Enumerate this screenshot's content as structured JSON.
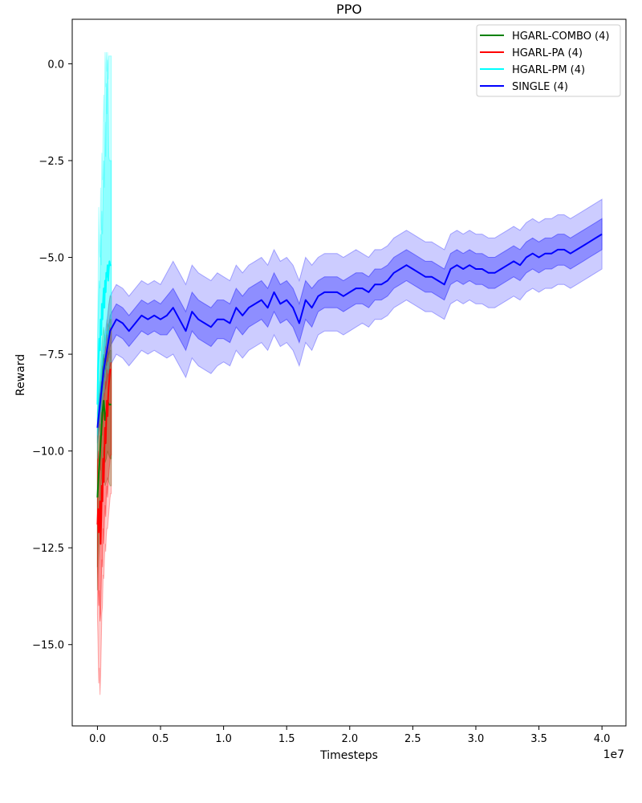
{
  "chart_data": {
    "type": "line",
    "title": "PPO",
    "xlabel": "Timesteps",
    "ylabel": "Reward",
    "x_offset_label": "1e7",
    "xlim": [
      -0.2,
      4.19
    ],
    "ylim": [
      -17.1,
      1.15
    ],
    "x_ticks": [
      0.0,
      0.5,
      1.0,
      1.5,
      2.0,
      2.5,
      3.0,
      3.5,
      4.0
    ],
    "x_tick_labels": [
      "0.0",
      "0.5",
      "1.0",
      "1.5",
      "2.0",
      "2.5",
      "3.0",
      "3.5",
      "4.0"
    ],
    "y_ticks": [
      0.0,
      -2.5,
      -5.0,
      -7.5,
      -10.0,
      -12.5,
      -15.0
    ],
    "y_tick_labels": [
      "0.0",
      "−2.5",
      "−5.0",
      "−7.5",
      "−10.0",
      "−12.5",
      "−15.0"
    ],
    "grid": false,
    "legend_position": "top-right",
    "series": [
      {
        "name": "HGARL-COMBO (4)",
        "color": "#008000",
        "x": [
          0.0,
          0.01,
          0.02,
          0.03,
          0.04,
          0.05,
          0.06,
          0.07,
          0.08,
          0.09,
          0.1,
          0.11
        ],
        "values": [
          -11.2,
          -10.6,
          -10.1,
          -9.5,
          -9.0,
          -8.7,
          -9.2,
          -9.0,
          -8.7,
          -8.8,
          -8.8,
          -8.8
        ],
        "band_lo": [
          -13.0,
          -12.0,
          -11.5,
          -10.8,
          -10.3,
          -9.9,
          -10.3,
          -10.2,
          -10.0,
          -10.1,
          -10.2,
          -10.2
        ],
        "band_hi": [
          -9.6,
          -9.2,
          -8.6,
          -8.2,
          -7.8,
          -7.5,
          -7.9,
          -7.7,
          -7.4,
          -7.5,
          -7.4,
          -7.4
        ],
        "band_outer_lo": [
          -13.6,
          -12.8,
          -12.2,
          -11.6,
          -11.0,
          -10.6,
          -10.9,
          -10.8,
          -10.7,
          -10.8,
          -10.9,
          -10.9
        ],
        "band_outer_hi": [
          -9.0,
          -8.6,
          -8.0,
          -7.5,
          -7.1,
          -6.8,
          -7.2,
          -7.0,
          -6.7,
          -6.8,
          -6.6,
          -6.6
        ]
      },
      {
        "name": "HGARL-PA (4)",
        "color": "#ff0000",
        "x": [
          0.0,
          0.005,
          0.01,
          0.015,
          0.02,
          0.025,
          0.03,
          0.035,
          0.04,
          0.045,
          0.05,
          0.055,
          0.06,
          0.065,
          0.07,
          0.075,
          0.08,
          0.085,
          0.09,
          0.095,
          0.1,
          0.105,
          0.11
        ],
        "values": [
          -11.9,
          -11.5,
          -12.1,
          -11.8,
          -11.3,
          -12.4,
          -11.7,
          -10.9,
          -11.3,
          -10.2,
          -10.8,
          -10.0,
          -9.4,
          -9.8,
          -9.2,
          -8.7,
          -9.1,
          -8.6,
          -8.3,
          -8.1,
          -7.9,
          -7.9,
          -7.9
        ],
        "band_lo": [
          -13.0,
          -13.4,
          -14.0,
          -13.6,
          -14.4,
          -14.2,
          -13.4,
          -12.8,
          -13.0,
          -12.0,
          -12.4,
          -11.8,
          -11.4,
          -11.7,
          -11.2,
          -10.9,
          -11.2,
          -10.8,
          -10.6,
          -10.4,
          -10.2,
          -10.1,
          -10.1
        ],
        "band_hi": [
          -10.4,
          -10.0,
          -10.3,
          -10.1,
          -9.6,
          -10.5,
          -10.0,
          -9.3,
          -9.6,
          -8.7,
          -9.2,
          -8.5,
          -8.0,
          -8.4,
          -7.8,
          -7.4,
          -7.7,
          -7.2,
          -6.9,
          -6.8,
          -6.6,
          -6.6,
          -6.6
        ],
        "band_outer_lo": [
          -14.2,
          -15.0,
          -16.0,
          -15.6,
          -16.3,
          -15.8,
          -15.0,
          -14.2,
          -14.0,
          -13.2,
          -13.3,
          -12.8,
          -12.4,
          -12.6,
          -12.2,
          -12.0,
          -12.0,
          -11.8,
          -11.6,
          -11.4,
          -11.2,
          -11.1,
          -11.1
        ],
        "band_outer_hi": [
          -9.5,
          -9.2,
          -9.4,
          -9.2,
          -8.8,
          -9.5,
          -9.1,
          -8.5,
          -8.7,
          -7.9,
          -8.3,
          -7.6,
          -7.2,
          -7.6,
          -7.0,
          -6.6,
          -6.9,
          -6.4,
          -6.2,
          -6.1,
          -6.0,
          -6.0,
          -6.0
        ]
      },
      {
        "name": "HGARL-PM (4)",
        "color": "#00ffff",
        "x": [
          0.0,
          0.005,
          0.01,
          0.015,
          0.02,
          0.025,
          0.03,
          0.035,
          0.04,
          0.045,
          0.05,
          0.055,
          0.06,
          0.065,
          0.07,
          0.075,
          0.08,
          0.085,
          0.09,
          0.095,
          0.1,
          0.105,
          0.11
        ],
        "values": [
          -8.8,
          -7.9,
          -7.5,
          -7.1,
          -7.4,
          -6.6,
          -7.0,
          -6.2,
          -6.6,
          -6.1,
          -5.8,
          -6.3,
          -5.6,
          -5.9,
          -5.4,
          -5.5,
          -5.2,
          -5.6,
          -5.3,
          -5.1,
          -5.2,
          -5.2,
          -5.2
        ],
        "band_lo": [
          -9.6,
          -8.8,
          -8.6,
          -8.2,
          -8.5,
          -7.9,
          -8.2,
          -7.5,
          -7.8,
          -7.4,
          -7.2,
          -7.6,
          -7.0,
          -7.3,
          -6.9,
          -7.0,
          -6.8,
          -7.1,
          -6.9,
          -6.7,
          -6.8,
          -6.8,
          -6.8
        ],
        "band_hi": [
          -7.9,
          -6.8,
          -6.0,
          -5.6,
          -5.8,
          -4.4,
          -5.2,
          -3.8,
          -4.4,
          -3.2,
          -2.5,
          -3.2,
          -1.5,
          -2.4,
          -0.5,
          -1.3,
          0.1,
          -1.0,
          -2.4,
          -2.5,
          -2.5,
          -2.5,
          -2.5
        ],
        "band_outer_lo": [
          -10.2,
          -9.5,
          -9.3,
          -9.0,
          -9.3,
          -8.7,
          -9.0,
          -8.4,
          -8.7,
          -8.3,
          -8.1,
          -8.5,
          -7.9,
          -8.2,
          -7.8,
          -7.9,
          -7.7,
          -8.0,
          -7.8,
          -7.6,
          -7.7,
          -7.7,
          -7.7
        ],
        "band_outer_hi": [
          -7.2,
          -5.8,
          -3.7,
          -4.8,
          -5.0,
          -3.2,
          -4.3,
          -2.3,
          -3.0,
          -1.8,
          -0.8,
          -1.5,
          0.3,
          -0.6,
          0.3,
          -0.2,
          0.3,
          -0.4,
          0.2,
          0.2,
          0.2,
          0.2,
          0.2
        ]
      },
      {
        "name": "SINGLE (4)",
        "color": "#0000ff",
        "x": [
          0.0,
          0.05,
          0.1,
          0.15,
          0.2,
          0.25,
          0.3,
          0.35,
          0.4,
          0.45,
          0.5,
          0.55,
          0.6,
          0.65,
          0.7,
          0.75,
          0.8,
          0.85,
          0.9,
          0.95,
          1.0,
          1.05,
          1.1,
          1.15,
          1.2,
          1.25,
          1.3,
          1.35,
          1.4,
          1.45,
          1.5,
          1.55,
          1.6,
          1.65,
          1.7,
          1.75,
          1.8,
          1.85,
          1.9,
          1.95,
          2.0,
          2.05,
          2.1,
          2.15,
          2.2,
          2.25,
          2.3,
          2.35,
          2.4,
          2.45,
          2.5,
          2.55,
          2.6,
          2.65,
          2.7,
          2.75,
          2.8,
          2.85,
          2.9,
          2.95,
          3.0,
          3.05,
          3.1,
          3.15,
          3.2,
          3.25,
          3.3,
          3.35,
          3.4,
          3.45,
          3.5,
          3.55,
          3.6,
          3.65,
          3.7,
          3.75,
          3.8,
          3.85,
          3.9,
          3.95,
          4.0
        ],
        "values": [
          -9.4,
          -7.9,
          -6.9,
          -6.6,
          -6.7,
          -6.9,
          -6.7,
          -6.5,
          -6.6,
          -6.5,
          -6.6,
          -6.5,
          -6.3,
          -6.6,
          -6.9,
          -6.4,
          -6.6,
          -6.7,
          -6.8,
          -6.6,
          -6.6,
          -6.7,
          -6.3,
          -6.5,
          -6.3,
          -6.2,
          -6.1,
          -6.3,
          -5.9,
          -6.2,
          -6.1,
          -6.3,
          -6.7,
          -6.1,
          -6.3,
          -6.0,
          -5.9,
          -5.9,
          -5.9,
          -6.0,
          -5.9,
          -5.8,
          -5.8,
          -5.9,
          -5.7,
          -5.7,
          -5.6,
          -5.4,
          -5.3,
          -5.2,
          -5.3,
          -5.4,
          -5.5,
          -5.5,
          -5.6,
          -5.7,
          -5.3,
          -5.2,
          -5.3,
          -5.2,
          -5.3,
          -5.3,
          -5.4,
          -5.4,
          -5.3,
          -5.2,
          -5.1,
          -5.2,
          -5.0,
          -4.9,
          -5.0,
          -4.9,
          -4.9,
          -4.8,
          -4.8,
          -4.9,
          -4.8,
          -4.7,
          -4.6,
          -4.5,
          -4.4
        ],
        "band_lo": [
          -9.6,
          -8.2,
          -7.3,
          -7.0,
          -7.1,
          -7.3,
          -7.1,
          -6.9,
          -7.0,
          -6.9,
          -7.0,
          -7.0,
          -6.8,
          -7.1,
          -7.4,
          -6.9,
          -7.1,
          -7.2,
          -7.3,
          -7.1,
          -7.1,
          -7.2,
          -6.8,
          -7.0,
          -6.8,
          -6.7,
          -6.6,
          -6.8,
          -6.4,
          -6.7,
          -6.6,
          -6.8,
          -7.2,
          -6.6,
          -6.8,
          -6.4,
          -6.3,
          -6.3,
          -6.3,
          -6.4,
          -6.3,
          -6.2,
          -6.2,
          -6.3,
          -6.1,
          -6.1,
          -6.0,
          -5.8,
          -5.7,
          -5.6,
          -5.7,
          -5.8,
          -5.9,
          -5.9,
          -6.0,
          -6.1,
          -5.7,
          -5.6,
          -5.7,
          -5.6,
          -5.7,
          -5.7,
          -5.8,
          -5.8,
          -5.7,
          -5.6,
          -5.5,
          -5.6,
          -5.4,
          -5.3,
          -5.4,
          -5.3,
          -5.3,
          -5.2,
          -5.2,
          -5.3,
          -5.2,
          -5.1,
          -5.0,
          -4.9,
          -4.8
        ],
        "band_hi": [
          -9.2,
          -7.6,
          -6.5,
          -6.2,
          -6.3,
          -6.5,
          -6.3,
          -6.1,
          -6.2,
          -6.1,
          -6.2,
          -6.0,
          -5.8,
          -6.1,
          -6.4,
          -5.9,
          -6.1,
          -6.2,
          -6.3,
          -6.1,
          -6.1,
          -6.2,
          -5.8,
          -6.0,
          -5.8,
          -5.7,
          -5.6,
          -5.8,
          -5.4,
          -5.7,
          -5.6,
          -5.8,
          -6.2,
          -5.6,
          -5.8,
          -5.6,
          -5.5,
          -5.5,
          -5.5,
          -5.6,
          -5.5,
          -5.4,
          -5.4,
          -5.5,
          -5.3,
          -5.3,
          -5.2,
          -5.0,
          -4.9,
          -4.8,
          -4.9,
          -5.0,
          -5.1,
          -5.1,
          -5.2,
          -5.3,
          -4.9,
          -4.8,
          -4.9,
          -4.8,
          -4.9,
          -4.9,
          -5.0,
          -5.0,
          -4.9,
          -4.8,
          -4.7,
          -4.8,
          -4.6,
          -4.5,
          -4.6,
          -4.5,
          -4.5,
          -4.4,
          -4.4,
          -4.5,
          -4.4,
          -4.3,
          -4.2,
          -4.1,
          -4.0
        ],
        "band_outer_lo": [
          -9.8,
          -8.6,
          -7.8,
          -7.5,
          -7.6,
          -7.8,
          -7.6,
          -7.4,
          -7.5,
          -7.4,
          -7.5,
          -7.6,
          -7.5,
          -7.8,
          -8.1,
          -7.6,
          -7.8,
          -7.9,
          -8.0,
          -7.8,
          -7.7,
          -7.8,
          -7.4,
          -7.6,
          -7.4,
          -7.3,
          -7.2,
          -7.4,
          -7.0,
          -7.3,
          -7.2,
          -7.4,
          -7.8,
          -7.2,
          -7.4,
          -7.0,
          -6.9,
          -6.9,
          -6.9,
          -7.0,
          -6.9,
          -6.8,
          -6.7,
          -6.8,
          -6.6,
          -6.6,
          -6.5,
          -6.3,
          -6.2,
          -6.1,
          -6.2,
          -6.3,
          -6.4,
          -6.4,
          -6.5,
          -6.6,
          -6.2,
          -6.1,
          -6.2,
          -6.1,
          -6.2,
          -6.2,
          -6.3,
          -6.3,
          -6.2,
          -6.1,
          -6.0,
          -6.1,
          -5.9,
          -5.8,
          -5.9,
          -5.8,
          -5.8,
          -5.7,
          -5.7,
          -5.8,
          -5.7,
          -5.6,
          -5.5,
          -5.4,
          -5.3
        ],
        "band_outer_hi": [
          -9.0,
          -7.2,
          -6.0,
          -5.7,
          -5.8,
          -6.0,
          -5.8,
          -5.6,
          -5.7,
          -5.6,
          -5.7,
          -5.4,
          -5.1,
          -5.4,
          -5.7,
          -5.2,
          -5.4,
          -5.5,
          -5.6,
          -5.4,
          -5.5,
          -5.6,
          -5.2,
          -5.4,
          -5.2,
          -5.1,
          -5.0,
          -5.2,
          -4.8,
          -5.1,
          -5.0,
          -5.2,
          -5.6,
          -5.0,
          -5.2,
          -5.0,
          -4.9,
          -4.9,
          -4.9,
          -5.0,
          -4.9,
          -4.8,
          -4.9,
          -5.0,
          -4.8,
          -4.8,
          -4.7,
          -4.5,
          -4.4,
          -4.3,
          -4.4,
          -4.5,
          -4.6,
          -4.6,
          -4.7,
          -4.8,
          -4.4,
          -4.3,
          -4.4,
          -4.3,
          -4.4,
          -4.4,
          -4.5,
          -4.5,
          -4.4,
          -4.3,
          -4.2,
          -4.3,
          -4.1,
          -4.0,
          -4.1,
          -4.0,
          -4.0,
          -3.9,
          -3.9,
          -4.0,
          -3.9,
          -3.8,
          -3.7,
          -3.6,
          -3.5
        ]
      }
    ]
  }
}
